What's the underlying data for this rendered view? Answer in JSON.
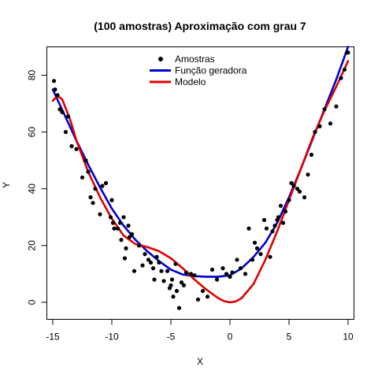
{
  "chart_data": {
    "type": "scatter",
    "title": "(100 amostras) Aproximação com grau  7",
    "xlabel": "X",
    "ylabel": "Y",
    "xlim": [
      -15.5,
      10.5
    ],
    "ylim": [
      -6,
      90
    ],
    "xticks": [
      -15,
      -10,
      -5,
      0,
      5,
      10
    ],
    "yticks": [
      0,
      20,
      40,
      60,
      80
    ],
    "grid": false,
    "legend_position": "top-center",
    "legend": [
      "Amostras",
      "Função geradora",
      "Modelo"
    ],
    "series": [
      {
        "name": "Amostras",
        "kind": "points",
        "color": "#000000",
        "x": [
          -14.9,
          -14.8,
          -14.6,
          -14.4,
          -14.2,
          -13.9,
          -13.7,
          -13.4,
          -13.0,
          -12.5,
          -12.2,
          -12.0,
          -11.8,
          -11.6,
          -11.4,
          -11.0,
          -10.8,
          -10.5,
          -10.1,
          -10.0,
          -9.9,
          -9.8,
          -9.5,
          -9.3,
          -9.2,
          -9.0,
          -8.9,
          -8.8,
          -8.6,
          -8.5,
          -8.3,
          -8.1,
          -7.7,
          -7.4,
          -7.2,
          -6.9,
          -6.7,
          -6.5,
          -6.4,
          -6.2,
          -6.0,
          -5.8,
          -5.6,
          -5.3,
          -5.1,
          -5.0,
          -4.9,
          -4.8,
          -4.6,
          -4.5,
          -4.3,
          -4.1,
          -3.9,
          -3.7,
          -3.3,
          -3.0,
          -2.7,
          -2.3,
          -1.9,
          -1.5,
          -1.1,
          -0.6,
          -0.3,
          0.0,
          0.2,
          0.6,
          0.9,
          1.3,
          1.6,
          1.9,
          2.1,
          2.3,
          2.6,
          2.9,
          3.1,
          3.4,
          3.6,
          3.8,
          4.0,
          4.1,
          4.3,
          4.5,
          4.7,
          5.0,
          5.2,
          5.4,
          5.7,
          5.9,
          6.3,
          6.6,
          6.9,
          7.2,
          7.6,
          8.0,
          8.5,
          9.0,
          9.4,
          9.7,
          10.0,
          9.9
        ],
        "y": [
          78.0,
          75.0,
          73.0,
          68.0,
          67.0,
          60.0,
          65.5,
          55.0,
          54.0,
          44.0,
          50.0,
          46.0,
          37.0,
          35.0,
          40.0,
          31.0,
          41.0,
          42.0,
          30.0,
          36.0,
          28.0,
          26.0,
          26.0,
          28.0,
          22.0,
          30.0,
          15.5,
          19.0,
          27.0,
          23.0,
          24.0,
          11.0,
          20.0,
          13.0,
          17.0,
          15.0,
          14.0,
          12.0,
          8.0,
          16.0,
          14.0,
          11.0,
          7.5,
          11.0,
          5.0,
          6.0,
          8.0,
          2.0,
          13.5,
          4.0,
          -2.0,
          7.0,
          6.0,
          10.5,
          10.0,
          9.5,
          1.0,
          4.0,
          2.0,
          11.5,
          8.0,
          12.0,
          10.0,
          9.0,
          10.5,
          15.0,
          12.0,
          10.0,
          26.0,
          15.0,
          21.0,
          19.0,
          17.0,
          29.0,
          26.0,
          16.0,
          25.0,
          27.0,
          29.0,
          30.0,
          34.0,
          28.0,
          32.0,
          36.0,
          42.0,
          41.0,
          40.0,
          39.0,
          37.0,
          45.0,
          52.0,
          60.0,
          62.0,
          68.0,
          63.0,
          69.0,
          79.0,
          82.0,
          88.0,
          88.0
        ]
      },
      {
        "name": "Função geradora",
        "kind": "line",
        "color": "#0000cc",
        "x": [
          -15,
          -14,
          -13,
          -12,
          -11,
          -10,
          -9,
          -8,
          -7,
          -6,
          -5,
          -4,
          -3,
          -2,
          -1,
          0,
          1,
          2,
          3,
          4,
          5,
          6,
          7,
          8,
          9,
          10
        ],
        "y": [
          75,
          66,
          57,
          48.5,
          40.5,
          33,
          27,
          22,
          18,
          14.5,
          11.5,
          9.8,
          9.2,
          9.0,
          9.0,
          9.5,
          12,
          16,
          21,
          28,
          37,
          47,
          57.5,
          68,
          78.5,
          90
        ]
      },
      {
        "name": "Modelo",
        "kind": "line",
        "color": "#dd0000",
        "x": [
          -15,
          -14.6,
          -14.2,
          -13.5,
          -13,
          -12,
          -11,
          -10,
          -9,
          -8,
          -7,
          -6,
          -5,
          -4,
          -3,
          -2,
          -1,
          -0.5,
          0,
          0.5,
          1,
          2,
          3,
          4,
          5,
          6,
          7,
          8,
          9,
          10
        ],
        "y": [
          71,
          72.8,
          71.5,
          64,
          57,
          46,
          37,
          29.5,
          23.5,
          20.5,
          19.5,
          18.0,
          15.5,
          12.0,
          8.0,
          4.5,
          1.5,
          0.4,
          0.0,
          0.3,
          1.5,
          6.5,
          15,
          25,
          36,
          47,
          58,
          67.5,
          76,
          85
        ]
      }
    ]
  }
}
